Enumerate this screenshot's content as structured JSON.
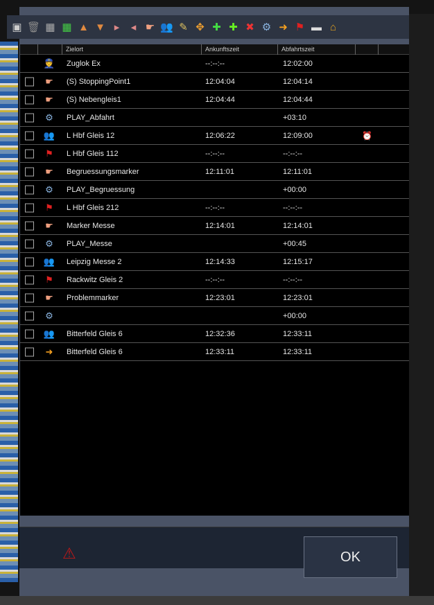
{
  "toolbar": {
    "icons": [
      "save-icon",
      "trash-icon",
      "grid-gray-icon",
      "grid-green-icon",
      "move-up-icon",
      "move-down-icon",
      "insert-before-icon",
      "insert-after-icon",
      "marker-hand-icon",
      "passengers-icon",
      "edit-icon",
      "expand-icon",
      "add-waypoint-icon",
      "add-after-icon",
      "delete-script-icon",
      "script-icon",
      "exit-icon",
      "flag-icon",
      "platform-icon",
      "station-icon"
    ]
  },
  "table": {
    "headers": {
      "destination": "Zielort",
      "arrival": "Ankunftszeit",
      "departure": "Abfahrtszeit"
    },
    "rows": [
      {
        "checkbox": false,
        "icon": "driver",
        "name": "Zuglok Ex",
        "arrival": "--:--:--",
        "departure": "12:02:00"
      },
      {
        "checkbox": true,
        "icon": "hand",
        "name": "(S) StoppingPoint1",
        "arrival": "12:04:04",
        "departure": "12:04:14"
      },
      {
        "checkbox": true,
        "icon": "hand",
        "name": "(S) Nebengleis1",
        "arrival": "12:04:44",
        "departure": "12:04:44"
      },
      {
        "checkbox": true,
        "icon": "script",
        "name": "PLAY_Abfahrt",
        "arrival": "",
        "departure": "+03:10"
      },
      {
        "checkbox": true,
        "icon": "passengers",
        "name": "L Hbf Gleis 12",
        "arrival": "12:06:22",
        "departure": "12:09:00",
        "extra": "alarm"
      },
      {
        "checkbox": true,
        "icon": "flag",
        "name": "L Hbf Gleis 112",
        "arrival": "--:--:--",
        "departure": "--:--:--"
      },
      {
        "checkbox": true,
        "icon": "hand",
        "name": "Begruessungsmarker",
        "arrival": "12:11:01",
        "departure": "12:11:01"
      },
      {
        "checkbox": true,
        "icon": "script",
        "name": "PLAY_Begruessung",
        "arrival": "",
        "departure": "+00:00"
      },
      {
        "checkbox": true,
        "icon": "flag",
        "name": "L Hbf Gleis 212",
        "arrival": "--:--:--",
        "departure": "--:--:--"
      },
      {
        "checkbox": true,
        "icon": "hand",
        "name": "Marker Messe",
        "arrival": "12:14:01",
        "departure": "12:14:01"
      },
      {
        "checkbox": true,
        "icon": "script",
        "name": "PLAY_Messe",
        "arrival": "",
        "departure": "+00:45"
      },
      {
        "checkbox": true,
        "icon": "passengers",
        "name": "Leipzig Messe 2",
        "arrival": "12:14:33",
        "departure": "12:15:17"
      },
      {
        "checkbox": true,
        "icon": "flag",
        "name": "Rackwitz Gleis 2",
        "arrival": "--:--:--",
        "departure": "--:--:--"
      },
      {
        "checkbox": true,
        "icon": "hand",
        "name": "Problemmarker",
        "arrival": "12:23:01",
        "departure": "12:23:01"
      },
      {
        "checkbox": true,
        "icon": "script",
        "name": "",
        "arrival": "",
        "departure": "+00:00"
      },
      {
        "checkbox": true,
        "icon": "passengers",
        "name": "Bitterfeld Gleis 6",
        "arrival": "12:32:36",
        "departure": "12:33:11"
      },
      {
        "checkbox": true,
        "icon": "exit",
        "name": "Bitterfeld Gleis 6",
        "arrival": "12:33:11",
        "departure": "12:33:11"
      }
    ]
  },
  "footer": {
    "ok_label": "OK",
    "warning_icon": "warning-edit-icon"
  }
}
